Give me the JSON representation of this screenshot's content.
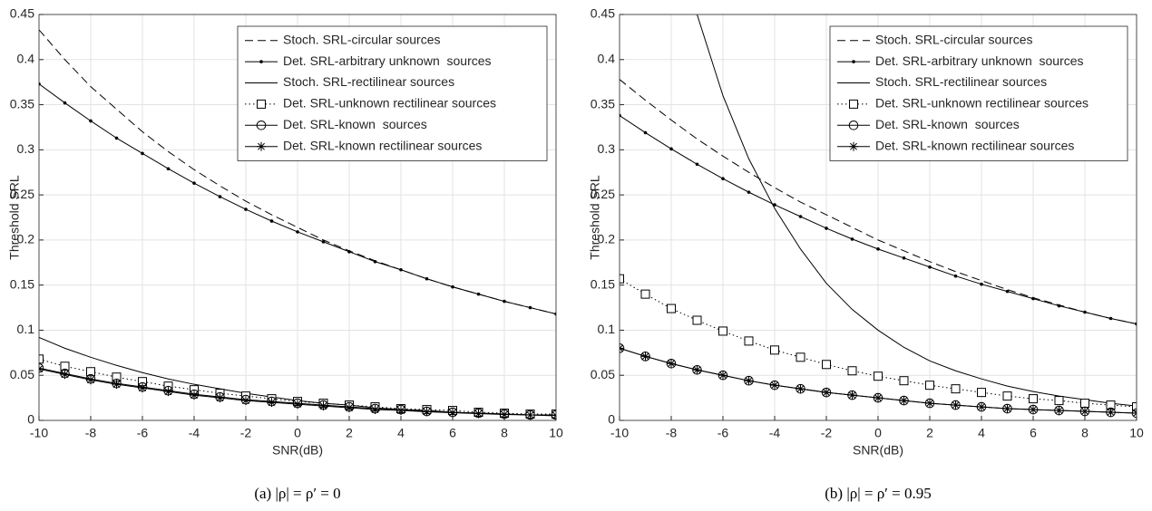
{
  "chart_data": [
    {
      "type": "line",
      "caption": "(a) |ρ| = ρ′ = 0",
      "x_label": "SNR(dB)",
      "y_label": "Threshold SRL",
      "x": [
        -10,
        -9,
        -8,
        -7,
        -6,
        -5,
        -4,
        -3,
        -2,
        -1,
        0,
        1,
        2,
        3,
        4,
        5,
        6,
        7,
        8,
        9,
        10
      ],
      "xlim": [
        -10,
        10
      ],
      "xticks": [
        -10,
        -8,
        -6,
        -4,
        -2,
        0,
        2,
        4,
        6,
        8,
        10
      ],
      "ylim": [
        0,
        0.45
      ],
      "yticks": [
        0,
        0.05,
        0.1,
        0.15,
        0.2,
        0.25,
        0.3,
        0.35,
        0.4,
        0.45
      ],
      "grid": true,
      "legend": "upper right",
      "series": [
        {
          "name": "Stoch. SRL-circular sources",
          "color": "#000000",
          "line": "dashed",
          "marker": "none",
          "values": [
            0.433,
            0.4,
            0.37,
            0.345,
            0.32,
            0.298,
            0.278,
            0.26,
            0.243,
            0.228,
            0.214,
            0.2,
            0.188,
            0.177,
            0.167,
            0.157,
            0.148,
            0.14,
            0.132,
            0.125,
            0.118
          ]
        },
        {
          "name": "Det. SRL-arbitrary unknown  sources",
          "color": "#000000",
          "line": "solid",
          "marker": "dot",
          "values": [
            0.373,
            0.352,
            0.332,
            0.313,
            0.296,
            0.279,
            0.263,
            0.248,
            0.234,
            0.221,
            0.209,
            0.198,
            0.187,
            0.176,
            0.167,
            0.157,
            0.148,
            0.14,
            0.132,
            0.125,
            0.118
          ]
        },
        {
          "name": "Stoch. SRL-rectilinear sources",
          "color": "#000000",
          "line": "solid",
          "marker": "none",
          "values": [
            0.092,
            0.08,
            0.07,
            0.061,
            0.053,
            0.046,
            0.04,
            0.035,
            0.03,
            0.026,
            0.022,
            0.019,
            0.017,
            0.014,
            0.012,
            0.011,
            0.009,
            0.008,
            0.007,
            0.006,
            0.005
          ]
        },
        {
          "name": "Det. SRL-unknown rectilinear sources",
          "color": "#000000",
          "line": "dotted",
          "marker": "square",
          "values": [
            0.068,
            0.06,
            0.054,
            0.048,
            0.043,
            0.038,
            0.034,
            0.03,
            0.027,
            0.024,
            0.021,
            0.019,
            0.017,
            0.015,
            0.013,
            0.012,
            0.011,
            0.009,
            0.008,
            0.007,
            0.007
          ]
        },
        {
          "name": "Det. SRL-known  sources",
          "color": "#000000",
          "line": "solid",
          "marker": "circle",
          "values": [
            0.058,
            0.052,
            0.046,
            0.041,
            0.037,
            0.033,
            0.029,
            0.026,
            0.023,
            0.021,
            0.019,
            0.017,
            0.015,
            0.013,
            0.012,
            0.01,
            0.009,
            0.008,
            0.007,
            0.006,
            0.006
          ]
        },
        {
          "name": "Det. SRL-known rectilinear sources",
          "color": "#000000",
          "line": "solid",
          "marker": "asterisk",
          "values": [
            0.057,
            0.051,
            0.045,
            0.04,
            0.036,
            0.032,
            0.028,
            0.025,
            0.022,
            0.02,
            0.018,
            0.016,
            0.014,
            0.012,
            0.011,
            0.0095,
            0.0085,
            0.0075,
            0.0065,
            0.006,
            0.0055
          ]
        }
      ]
    },
    {
      "type": "line",
      "caption": "(b) |ρ| = ρ′ = 0.95",
      "x_label": "SNR(dB)",
      "y_label": "Threshold SRL",
      "x": [
        -10,
        -9,
        -8,
        -7,
        -6,
        -5,
        -4,
        -3,
        -2,
        -1,
        0,
        1,
        2,
        3,
        4,
        5,
        6,
        7,
        8,
        9,
        10
      ],
      "xlim": [
        -10,
        10
      ],
      "xticks": [
        -10,
        -8,
        -6,
        -4,
        -2,
        0,
        2,
        4,
        6,
        8,
        10
      ],
      "ylim": [
        0,
        0.45
      ],
      "yticks": [
        0,
        0.05,
        0.1,
        0.15,
        0.2,
        0.25,
        0.3,
        0.35,
        0.4,
        0.45
      ],
      "grid": true,
      "legend": "upper right",
      "series": [
        {
          "name": "Stoch. SRL-circular sources",
          "color": "#000000",
          "line": "dashed",
          "marker": "none",
          "values": [
            0.378,
            0.355,
            0.333,
            0.312,
            0.293,
            0.275,
            0.258,
            0.242,
            0.228,
            0.214,
            0.2,
            0.188,
            0.176,
            0.165,
            0.155,
            0.145,
            0.136,
            0.128,
            0.12,
            0.113,
            0.107
          ]
        },
        {
          "name": "Det. SRL-arbitrary unknown  sources",
          "color": "#000000",
          "line": "solid",
          "marker": "dot",
          "values": [
            0.338,
            0.319,
            0.301,
            0.284,
            0.268,
            0.253,
            0.239,
            0.226,
            0.213,
            0.201,
            0.19,
            0.18,
            0.17,
            0.16,
            0.151,
            0.143,
            0.135,
            0.127,
            0.12,
            0.113,
            0.107
          ]
        },
        {
          "name": "Stoch. SRL-rectilinear sources",
          "color": "#000000",
          "line": "solid",
          "marker": "none",
          "values": [
            null,
            null,
            null,
            0.45,
            0.36,
            0.29,
            0.235,
            0.19,
            0.152,
            0.123,
            0.1,
            0.081,
            0.066,
            0.055,
            0.046,
            0.038,
            0.032,
            0.027,
            0.023,
            0.019,
            0.016
          ]
        },
        {
          "name": "Det. SRL-unknown rectilinear sources",
          "color": "#000000",
          "line": "dotted",
          "marker": "square",
          "values": [
            0.157,
            0.14,
            0.124,
            0.111,
            0.099,
            0.088,
            0.078,
            0.07,
            0.062,
            0.055,
            0.049,
            0.044,
            0.039,
            0.035,
            0.031,
            0.027,
            0.024,
            0.022,
            0.019,
            0.017,
            0.015
          ]
        },
        {
          "name": "Det. SRL-known  sources",
          "color": "#000000",
          "line": "solid",
          "marker": "circle",
          "values": [
            0.08,
            0.071,
            0.063,
            0.056,
            0.05,
            0.044,
            0.039,
            0.035,
            0.031,
            0.028,
            0.025,
            0.022,
            0.019,
            0.017,
            0.015,
            0.013,
            0.012,
            0.011,
            0.01,
            0.009,
            0.008
          ]
        },
        {
          "name": "Det. SRL-known rectilinear sources",
          "color": "#000000",
          "line": "solid",
          "marker": "asterisk",
          "values": [
            0.08,
            0.071,
            0.063,
            0.056,
            0.05,
            0.044,
            0.039,
            0.035,
            0.031,
            0.028,
            0.025,
            0.022,
            0.019,
            0.017,
            0.015,
            0.013,
            0.012,
            0.011,
            0.01,
            0.009,
            0.008
          ]
        }
      ]
    }
  ]
}
